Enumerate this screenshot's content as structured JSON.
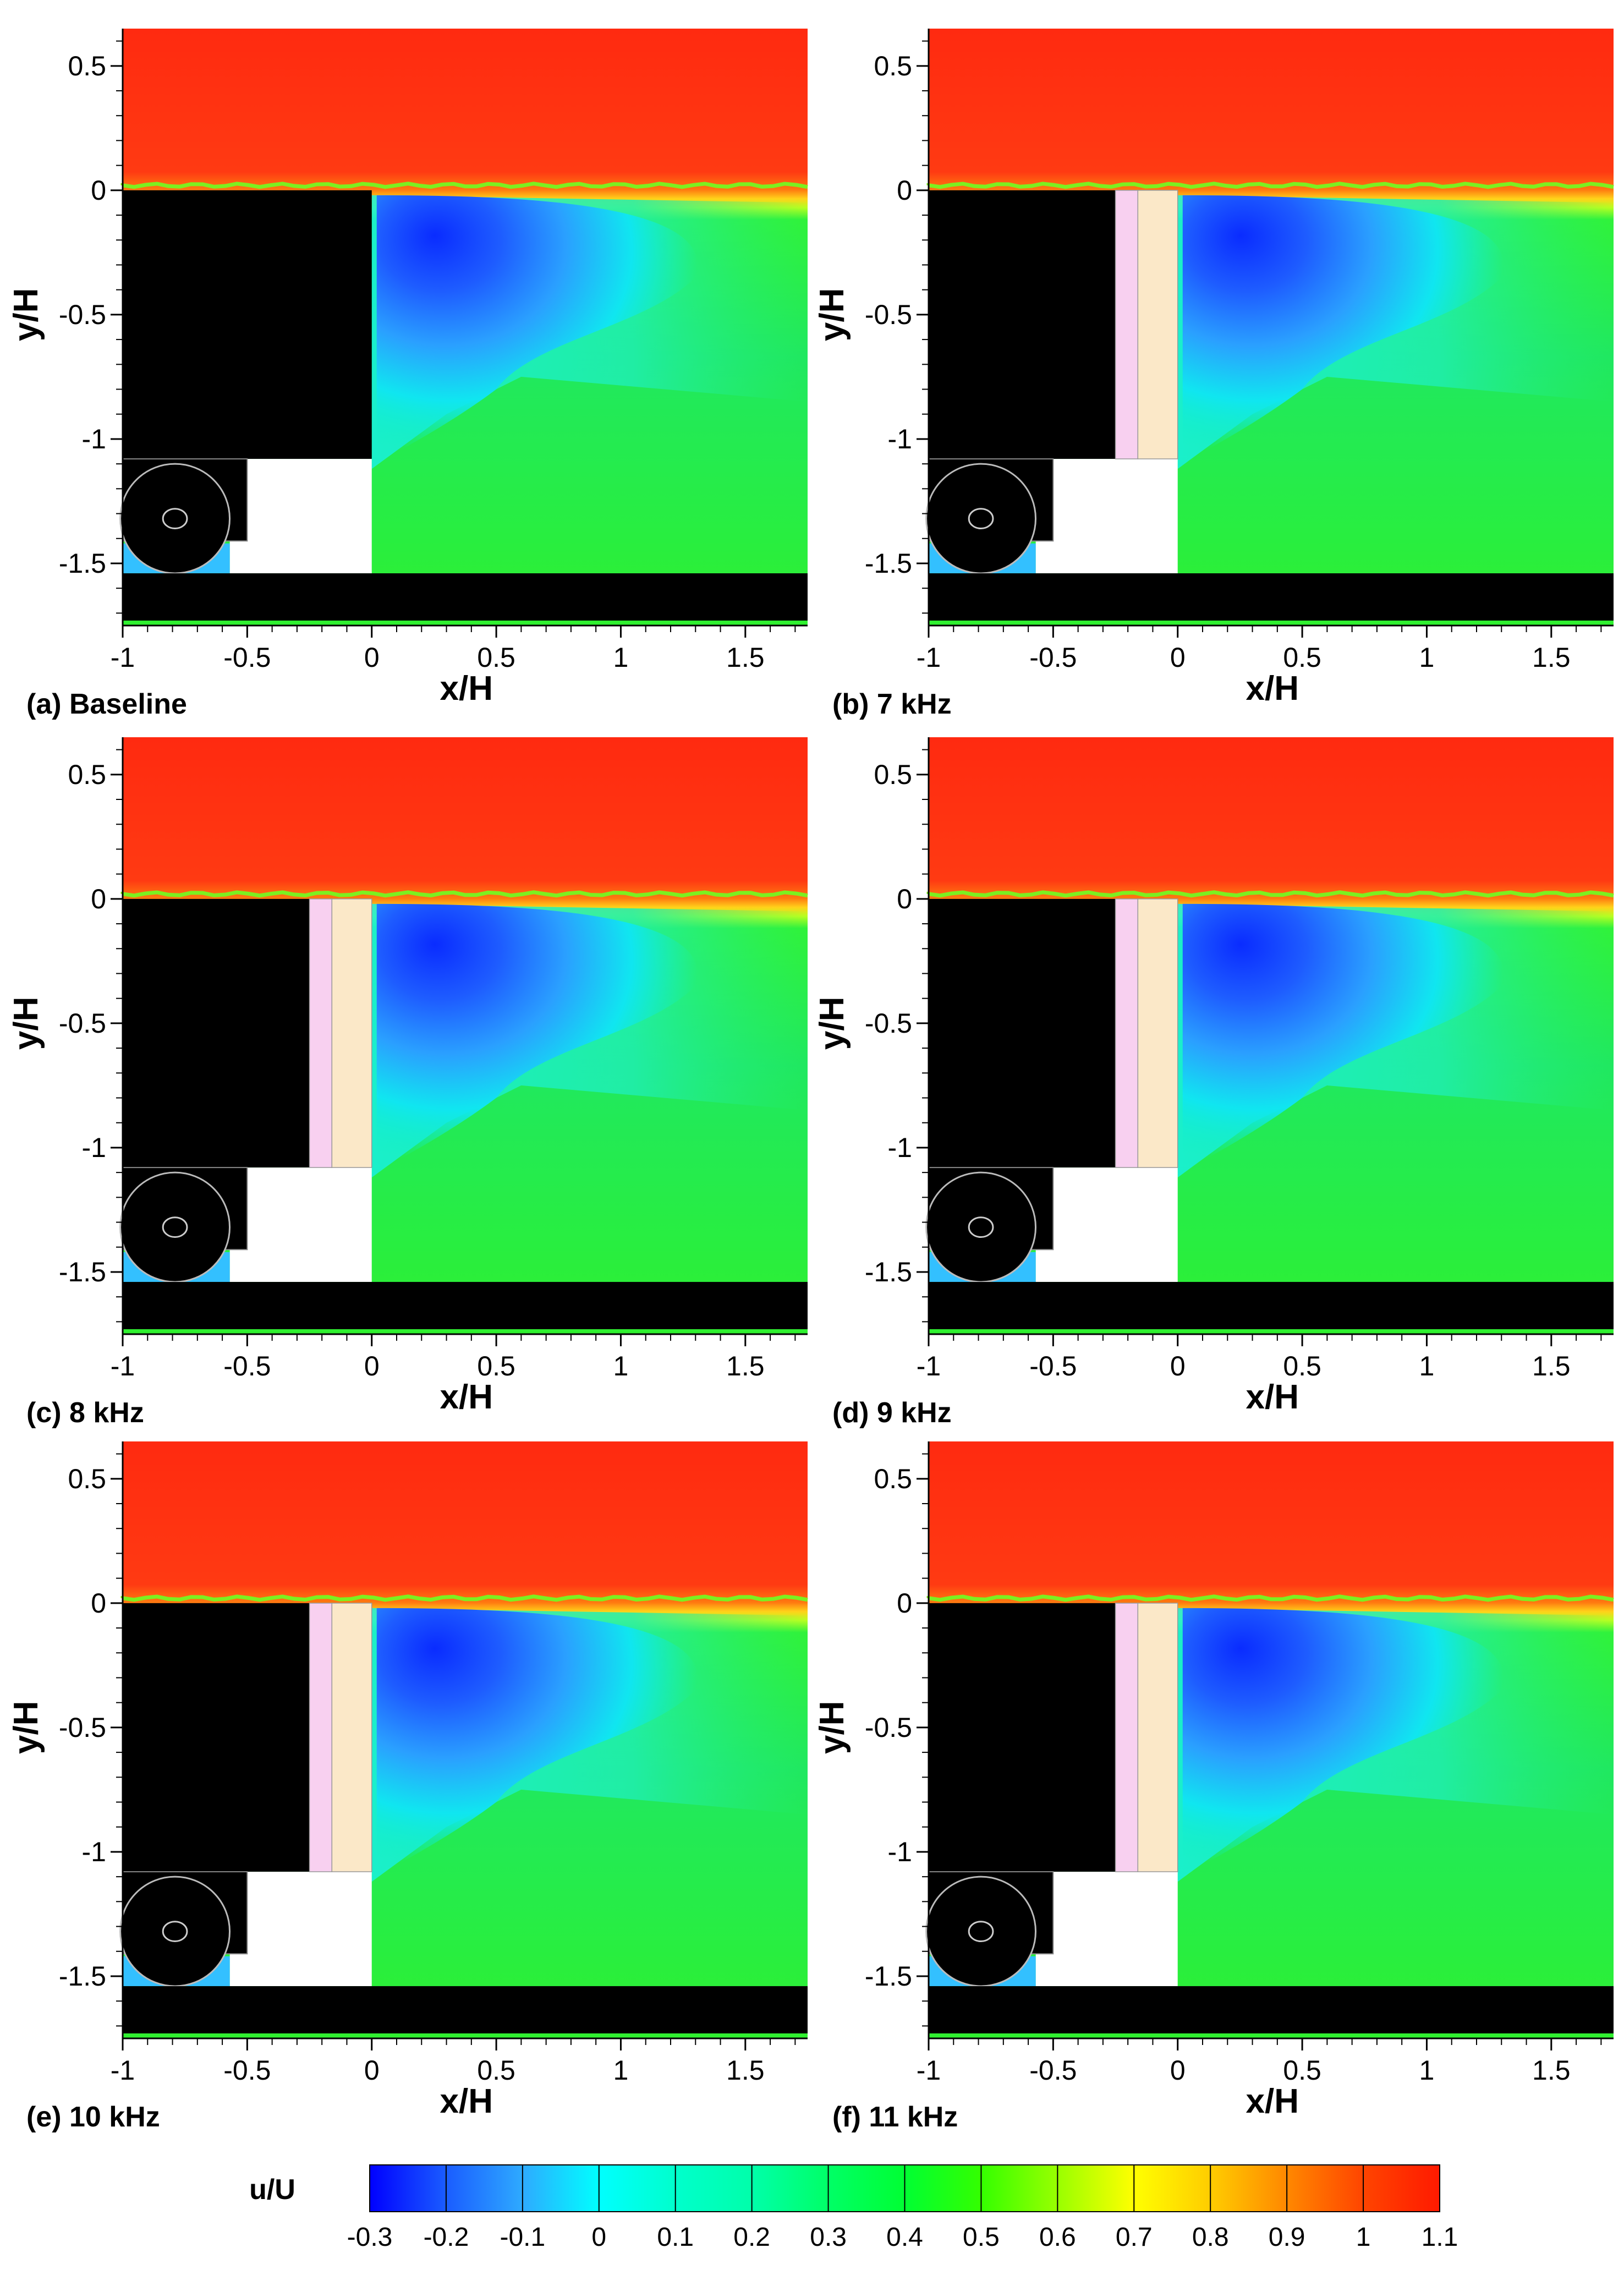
{
  "figure": {
    "colorbar": {
      "label": "u/U",
      "ticks": [
        "-0.3",
        "-0.2",
        "-0.1",
        "0",
        "0.1",
        "0.2",
        "0.3",
        "0.4",
        "0.5",
        "0.6",
        "0.7",
        "0.8",
        "0.9",
        "1",
        "1.1"
      ],
      "colors": [
        "#0000ff",
        "#1a5cff",
        "#2eaaff",
        "#00ffff",
        "#00ffcc",
        "#00ffaa",
        "#00ff66",
        "#00ff33",
        "#33ff00",
        "#99ff00",
        "#ffff00",
        "#ffcc00",
        "#ff8800",
        "#ff4400",
        "#ff1a00"
      ]
    }
  },
  "chart_data": [
    {
      "type": "heatmap",
      "caption": "(a) Baseline",
      "xlabel": "x/H",
      "ylabel": "y/H",
      "xlim": [
        -1,
        1.75
      ],
      "ylim": [
        -1.75,
        0.65
      ],
      "x_ticks": [
        "-1",
        "-0.5",
        "0",
        "0.5",
        "1",
        "1.5"
      ],
      "y_ticks": [
        "0.5",
        "0",
        "-0.5",
        "-1",
        "-1.5"
      ],
      "variable": "u/U",
      "actuator": false
    },
    {
      "type": "heatmap",
      "caption": "(b) 7 kHz",
      "xlabel": "x/H",
      "ylabel": "y/H",
      "xlim": [
        -1,
        1.75
      ],
      "ylim": [
        -1.75,
        0.65
      ],
      "x_ticks": [
        "-1",
        "-0.5",
        "0",
        "0.5",
        "1",
        "1.5"
      ],
      "y_ticks": [
        "0.5",
        "0",
        "-0.5",
        "-1",
        "-1.5"
      ],
      "variable": "u/U",
      "actuator": true
    },
    {
      "type": "heatmap",
      "caption": "(c) 8 kHz",
      "xlabel": "x/H",
      "ylabel": "y/H",
      "xlim": [
        -1,
        1.75
      ],
      "ylim": [
        -1.75,
        0.65
      ],
      "x_ticks": [
        "-1",
        "-0.5",
        "0",
        "0.5",
        "1",
        "1.5"
      ],
      "y_ticks": [
        "0.5",
        "0",
        "-0.5",
        "-1",
        "-1.5"
      ],
      "variable": "u/U",
      "actuator": true
    },
    {
      "type": "heatmap",
      "caption": "(d) 9 kHz",
      "xlabel": "x/H",
      "ylabel": "y/H",
      "xlim": [
        -1,
        1.75
      ],
      "ylim": [
        -1.75,
        0.65
      ],
      "x_ticks": [
        "-1",
        "-0.5",
        "0",
        "0.5",
        "1",
        "1.5"
      ],
      "y_ticks": [
        "0.5",
        "0",
        "-0.5",
        "-1",
        "-1.5"
      ],
      "variable": "u/U",
      "actuator": true
    },
    {
      "type": "heatmap",
      "caption": "(e) 10 kHz",
      "xlabel": "x/H",
      "ylabel": "y/H",
      "xlim": [
        -1,
        1.75
      ],
      "ylim": [
        -1.75,
        0.65
      ],
      "x_ticks": [
        "-1",
        "-0.5",
        "0",
        "0.5",
        "1",
        "1.5"
      ],
      "y_ticks": [
        "0.5",
        "0",
        "-0.5",
        "-1",
        "-1.5"
      ],
      "variable": "u/U",
      "actuator": true
    },
    {
      "type": "heatmap",
      "caption": "(f) 11 kHz",
      "xlabel": "x/H",
      "ylabel": "y/H",
      "xlim": [
        -1,
        1.75
      ],
      "ylim": [
        -1.75,
        0.65
      ],
      "x_ticks": [
        "-1",
        "-0.5",
        "0",
        "0.5",
        "1",
        "1.5"
      ],
      "y_ticks": [
        "0.5",
        "0",
        "-0.5",
        "-1",
        "-1.5"
      ],
      "variable": "u/U",
      "actuator": true
    }
  ]
}
